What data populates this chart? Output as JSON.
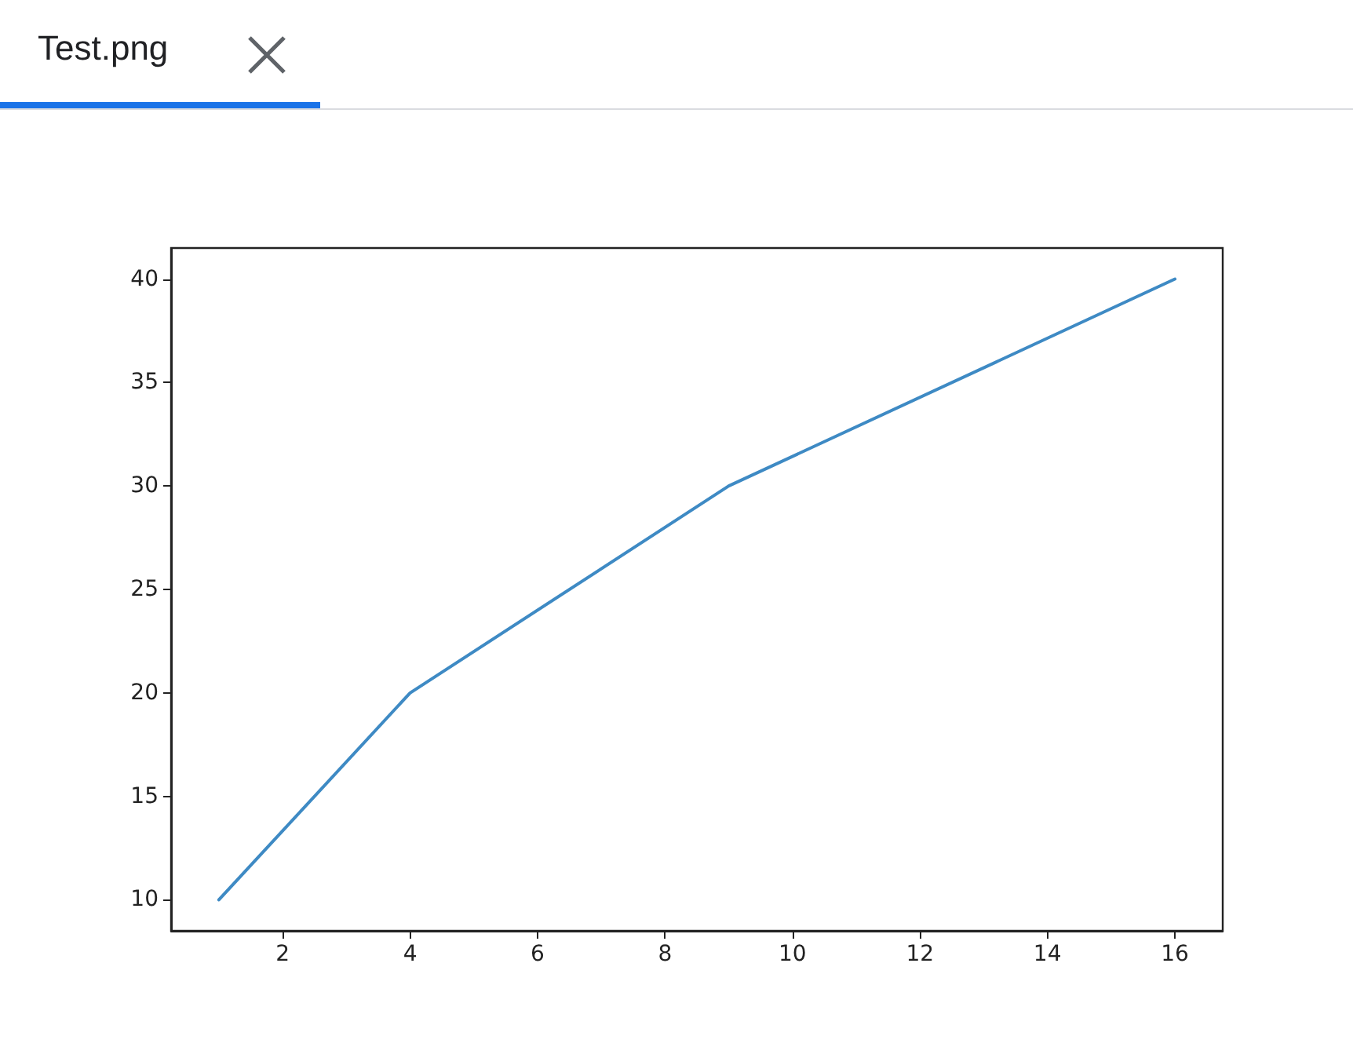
{
  "chart_data": {
    "type": "line",
    "title": "Test.png",
    "x": [
      1,
      4,
      9,
      16
    ],
    "series": [
      {
        "color": "#3e8ac4",
        "values": [
          10,
          20,
          30,
          40
        ]
      }
    ],
    "xlim": [
      0.25,
      16.75
    ],
    "xticks": [
      2,
      4,
      6,
      8,
      10,
      12,
      14,
      16
    ],
    "ylim": [
      8.5,
      41.5
    ],
    "yticks": [
      10,
      15,
      20,
      25,
      30,
      35,
      40
    ],
    "grid": false,
    "marker": "none",
    "line_style": "solid"
  }
}
